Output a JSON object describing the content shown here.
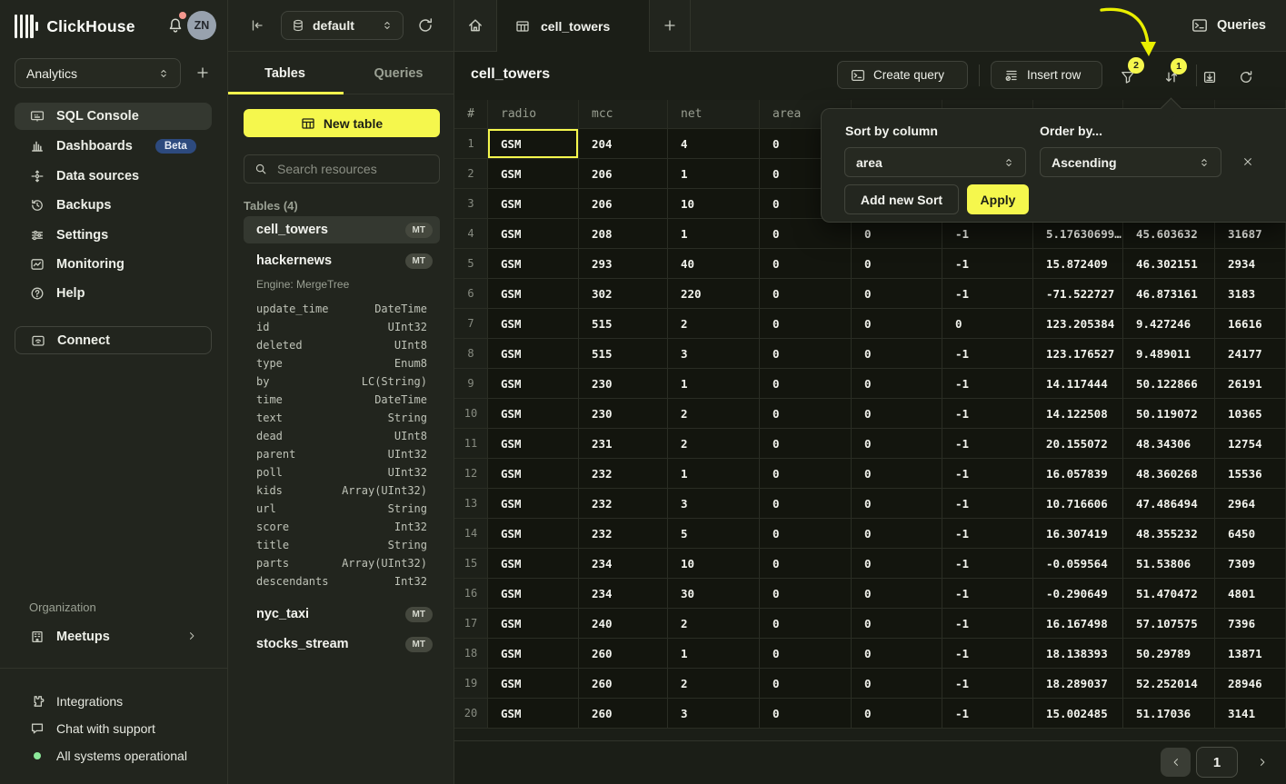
{
  "app": {
    "brand": "ClickHouse",
    "avatar_initials": "ZN"
  },
  "sidebar": {
    "workspace": "Analytics",
    "nav": [
      {
        "label": "SQL Console",
        "icon": "console",
        "active": true
      },
      {
        "label": "Dashboards",
        "icon": "dashboards",
        "badge": "Beta"
      },
      {
        "label": "Data sources",
        "icon": "datasources"
      },
      {
        "label": "Backups",
        "icon": "backups"
      },
      {
        "label": "Settings",
        "icon": "settings"
      },
      {
        "label": "Monitoring",
        "icon": "monitoring"
      },
      {
        "label": "Help",
        "icon": "help"
      }
    ],
    "connect": "Connect",
    "organization_label": "Organization",
    "org_item": "Meetups",
    "footer": [
      {
        "label": "Integrations",
        "icon": "puzzle"
      },
      {
        "label": "Chat with support",
        "icon": "chat"
      },
      {
        "label": "All systems operational",
        "icon": "status-dot"
      }
    ]
  },
  "explorer": {
    "database": "default",
    "tabs": [
      {
        "label": "Tables",
        "active": true
      },
      {
        "label": "Queries",
        "active": false
      }
    ],
    "new_table": "New table",
    "search_placeholder": "Search resources",
    "section": "Tables (4)",
    "tables": [
      {
        "name": "cell_towers",
        "badge": "MT",
        "selected": true
      },
      {
        "name": "hackernews",
        "badge": "MT",
        "engine": "Engine: MergeTree",
        "columns": [
          [
            "update_time",
            "DateTime"
          ],
          [
            "id",
            "UInt32"
          ],
          [
            "deleted",
            "UInt8"
          ],
          [
            "type",
            "Enum8"
          ],
          [
            "by",
            "LC(String)"
          ],
          [
            "time",
            "DateTime"
          ],
          [
            "text",
            "String"
          ],
          [
            "dead",
            "UInt8"
          ],
          [
            "parent",
            "UInt32"
          ],
          [
            "poll",
            "UInt32"
          ],
          [
            "kids",
            "Array(UInt32)"
          ],
          [
            "url",
            "String"
          ],
          [
            "score",
            "Int32"
          ],
          [
            "title",
            "String"
          ],
          [
            "parts",
            "Array(UInt32)"
          ],
          [
            "descendants",
            "Int32"
          ]
        ]
      },
      {
        "name": "nyc_taxi",
        "badge": "MT"
      },
      {
        "name": "stocks_stream",
        "badge": "MT"
      }
    ]
  },
  "main": {
    "tab_label": "cell_towers",
    "queries_button": "Queries",
    "title": "cell_towers",
    "create_query": "Create query",
    "insert_row": "Insert row",
    "filter_badge": "2",
    "sort_badge": "1",
    "pagination_page": "1"
  },
  "grid": {
    "headers": [
      "#",
      "radio",
      "mcc",
      "net",
      "area",
      "",
      "",
      "",
      "",
      ""
    ],
    "selected_cell": {
      "row": 0,
      "col": 1
    },
    "rows": [
      [
        "1",
        "GSM",
        "204",
        "4",
        "0",
        "",
        "",
        "",
        "",
        ""
      ],
      [
        "2",
        "GSM",
        "206",
        "1",
        "0",
        "",
        "",
        "",
        "",
        ""
      ],
      [
        "3",
        "GSM",
        "206",
        "10",
        "0",
        "",
        "",
        "",
        "",
        ""
      ],
      [
        "4",
        "GSM",
        "208",
        "1",
        "0",
        "0",
        "-1",
        "5.17630699…",
        "45.603632",
        "31687"
      ],
      [
        "5",
        "GSM",
        "293",
        "40",
        "0",
        "0",
        "-1",
        "15.872409",
        "46.302151",
        "2934"
      ],
      [
        "6",
        "GSM",
        "302",
        "220",
        "0",
        "0",
        "-1",
        "-71.522727",
        "46.873161",
        "3183"
      ],
      [
        "7",
        "GSM",
        "515",
        "2",
        "0",
        "0",
        "0",
        "123.205384",
        "9.427246",
        "16616"
      ],
      [
        "8",
        "GSM",
        "515",
        "3",
        "0",
        "0",
        "-1",
        "123.176527",
        "9.489011",
        "24177"
      ],
      [
        "9",
        "GSM",
        "230",
        "1",
        "0",
        "0",
        "-1",
        "14.117444",
        "50.122866",
        "26191"
      ],
      [
        "10",
        "GSM",
        "230",
        "2",
        "0",
        "0",
        "-1",
        "14.122508",
        "50.119072",
        "10365"
      ],
      [
        "11",
        "GSM",
        "231",
        "2",
        "0",
        "0",
        "-1",
        "20.155072",
        "48.34306",
        "12754"
      ],
      [
        "12",
        "GSM",
        "232",
        "1",
        "0",
        "0",
        "-1",
        "16.057839",
        "48.360268",
        "15536"
      ],
      [
        "13",
        "GSM",
        "232",
        "3",
        "0",
        "0",
        "-1",
        "10.716606",
        "47.486494",
        "2964"
      ],
      [
        "14",
        "GSM",
        "232",
        "5",
        "0",
        "0",
        "-1",
        "16.307419",
        "48.355232",
        "6450"
      ],
      [
        "15",
        "GSM",
        "234",
        "10",
        "0",
        "0",
        "-1",
        "-0.059564",
        "51.53806",
        "7309"
      ],
      [
        "16",
        "GSM",
        "234",
        "30",
        "0",
        "0",
        "-1",
        "-0.290649",
        "51.470472",
        "4801"
      ],
      [
        "17",
        "GSM",
        "240",
        "2",
        "0",
        "0",
        "-1",
        "16.167498",
        "57.107575",
        "7396"
      ],
      [
        "18",
        "GSM",
        "260",
        "1",
        "0",
        "0",
        "-1",
        "18.138393",
        "50.29789",
        "13871"
      ],
      [
        "19",
        "GSM",
        "260",
        "2",
        "0",
        "0",
        "-1",
        "18.289037",
        "52.252014",
        "28946"
      ],
      [
        "20",
        "GSM",
        "260",
        "3",
        "0",
        "0",
        "-1",
        "15.002485",
        "51.17036",
        "3141"
      ]
    ]
  },
  "sort_popup": {
    "sort_label": "Sort by column",
    "sort_value": "area",
    "order_label": "Order by...",
    "order_value": "Ascending",
    "add_button": "Add new Sort",
    "apply_button": "Apply"
  },
  "colors": {
    "accent": "#f5f74d",
    "arrow": "#e9ef00",
    "beta_badge": "#2d4a7e",
    "status_green": "#8ce99a"
  }
}
